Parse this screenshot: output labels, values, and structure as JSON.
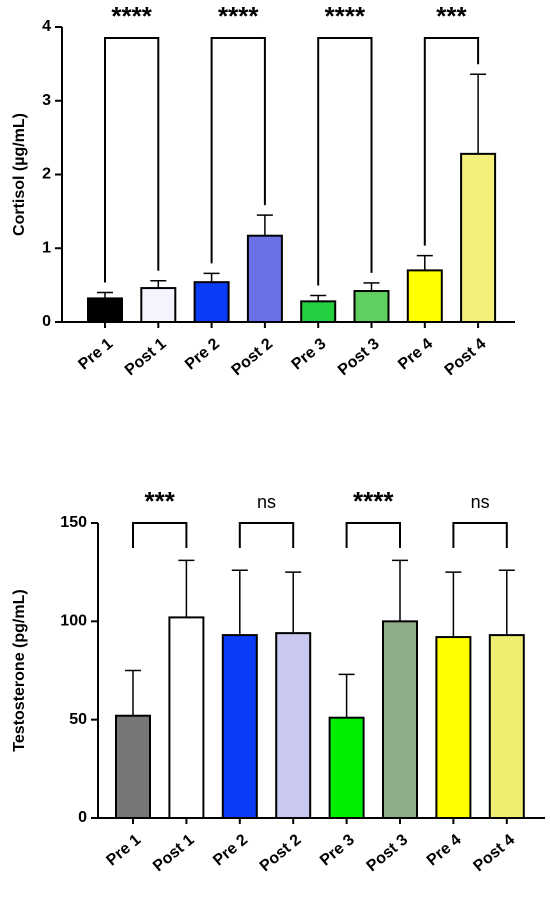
{
  "chart_data": [
    {
      "type": "bar",
      "ylabel": "Cortisol (µg/mL)",
      "categories": [
        "Pre 1",
        "Post 1",
        "Pre 2",
        "Post 2",
        "Pre 3",
        "Post 3",
        "Pre 4",
        "Post 4"
      ],
      "values": [
        0.32,
        0.46,
        0.54,
        1.17,
        0.28,
        0.42,
        0.7,
        2.28
      ],
      "errors": [
        0.08,
        0.1,
        0.12,
        0.28,
        0.08,
        0.11,
        0.2,
        1.08
      ],
      "colors": [
        "#000000",
        "#f4f4ff",
        "#0a3cf5",
        "#6a70e6",
        "#22d040",
        "#5fd05f",
        "#ffff00",
        "#f3f07a"
      ],
      "ylim": [
        0,
        4
      ],
      "yticks": [
        0,
        1,
        2,
        3,
        4
      ],
      "significance": [
        "****",
        "****",
        "****",
        "***"
      ]
    },
    {
      "type": "bar",
      "ylabel": "Testosterone (pg/mL)",
      "categories": [
        "Pre 1",
        "Post 1",
        "Pre 2",
        "Post 2",
        "Pre 3",
        "Post 3",
        "Pre 4",
        "Post 4"
      ],
      "values": [
        52,
        102,
        93,
        94,
        51,
        100,
        92,
        93
      ],
      "errors": [
        23,
        29,
        33,
        31,
        22,
        31,
        33,
        33
      ],
      "colors": [
        "#777777",
        "#ffffff",
        "#0a3cf5",
        "#c8c8f0",
        "#00ee00",
        "#8fad8a",
        "#ffff00",
        "#eeee70"
      ],
      "ylim": [
        0,
        150
      ],
      "yticks": [
        0,
        50,
        100,
        150
      ],
      "significance": [
        "***",
        "ns",
        "****",
        "ns"
      ]
    }
  ]
}
